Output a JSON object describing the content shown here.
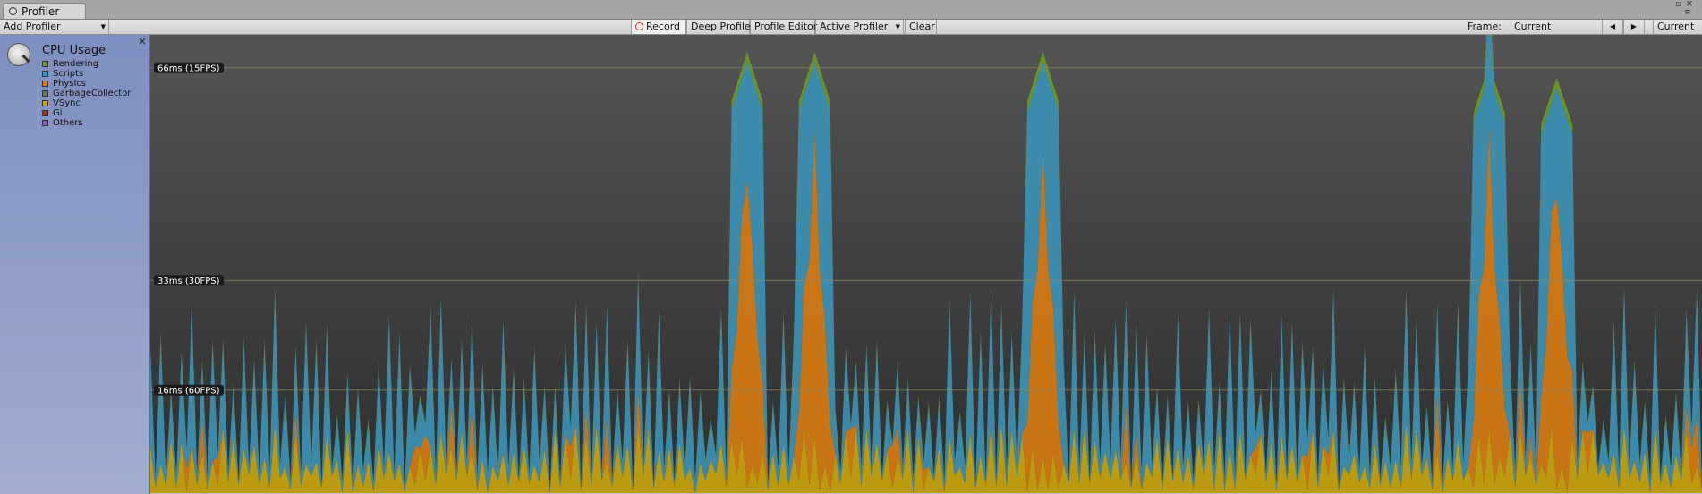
{
  "window": {
    "tab_label": "Profiler",
    "controls": {
      "maximize": "▫",
      "close": "✕",
      "menu": "≡"
    }
  },
  "toolbar": {
    "add_profiler": "Add Profiler",
    "record": "Record",
    "deep_profile": "Deep Profile",
    "profile_editor": "Profile Editor",
    "active_profiler": "Active Profiler",
    "clear": "Clear",
    "frame_label": "Frame:",
    "frame_value": "Current",
    "prev_icon": "◀",
    "next_icon": "▶",
    "current_button": "Current"
  },
  "module": {
    "title": "CPU Usage",
    "close_icon": "×",
    "legend": [
      {
        "label": "Rendering",
        "color": "#6b9a1f"
      },
      {
        "label": "Scripts",
        "color": "#3d91b5"
      },
      {
        "label": "Physics",
        "color": "#d67a12"
      },
      {
        "label": "GarbageCollector",
        "color": "#6a7a4a"
      },
      {
        "label": "VSync",
        "color": "#c9a40e"
      },
      {
        "label": "Gi",
        "color": "#9c3a1a"
      },
      {
        "label": "Others",
        "color": "#8e5fa6"
      }
    ]
  },
  "chart_data": {
    "type": "area",
    "ylim": [
      0,
      70
    ],
    "grid": true,
    "reference_lines": [
      {
        "value": 66,
        "label": "66ms (15FPS)"
      },
      {
        "value": 33,
        "label": "33ms (30FPS)"
      },
      {
        "value": 16,
        "label": "16ms (60FPS)"
      }
    ],
    "frames": 300,
    "series_stack_order": [
      "VSync",
      "Physics",
      "Scripts",
      "Rendering"
    ],
    "approx_profile": {
      "vsync_ms": [
        0,
        11
      ],
      "typical_spike_ms": [
        16,
        31
      ],
      "large_spikes": [
        {
          "frame": 115,
          "peak_ms": 68
        },
        {
          "frame": 128,
          "peak_ms": 68
        },
        {
          "frame": 172,
          "peak_ms": 68
        },
        {
          "frame": 258,
          "peak_ms": 66
        },
        {
          "frame": 271,
          "peak_ms": 64
        }
      ]
    }
  }
}
